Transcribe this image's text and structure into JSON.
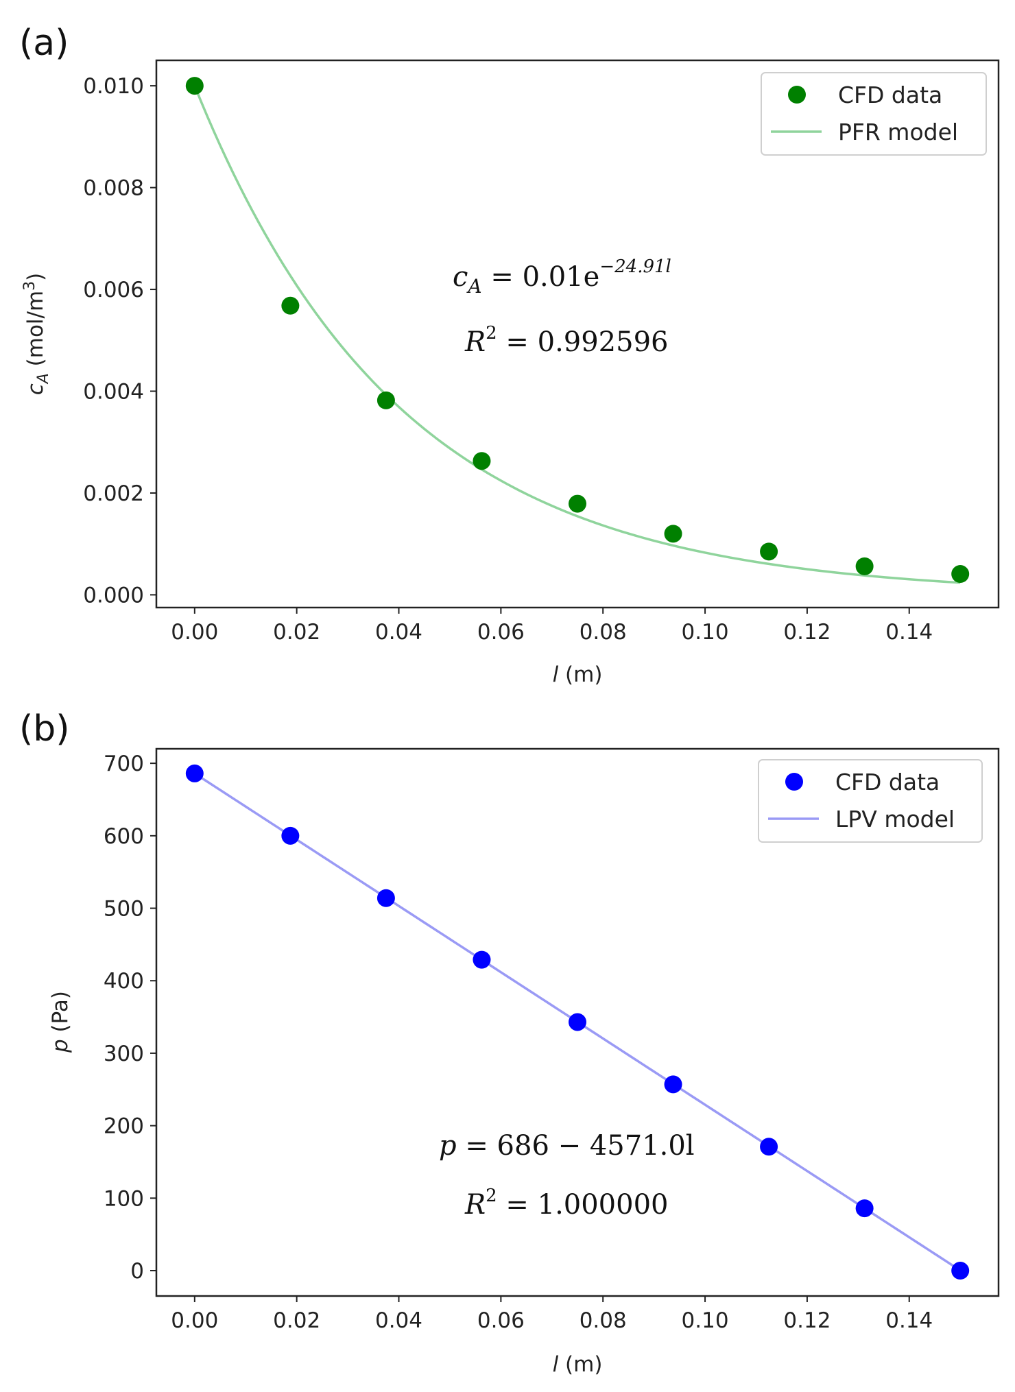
{
  "chart_data": [
    {
      "type": "scatter",
      "panel_label": "(a)",
      "xlabel_var": "l",
      "xlabel_unit": " (m)",
      "ylabel_var": "c",
      "ylabel_sub": "A",
      "ylabel_unit": " (mol/m",
      "ylabel_sup": "3",
      "ylabel_close": ")",
      "xlim": [
        -0.0075,
        0.1575
      ],
      "ylim": [
        -0.00025,
        0.0105
      ],
      "xticks": [
        0.0,
        0.02,
        0.04,
        0.06,
        0.08,
        0.1,
        0.12,
        0.14
      ],
      "xtick_labels": [
        "0.00",
        "0.02",
        "0.04",
        "0.06",
        "0.08",
        "0.10",
        "0.12",
        "0.14"
      ],
      "yticks": [
        0.0,
        0.002,
        0.004,
        0.006,
        0.008,
        0.01
      ],
      "ytick_labels": [
        "0.000",
        "0.002",
        "0.004",
        "0.006",
        "0.008",
        "0.010"
      ],
      "legend_position": "top-right",
      "series": [
        {
          "name": "CFD data",
          "kind": "scatter",
          "color": "#008000",
          "x": [
            0.0,
            0.01875,
            0.0375,
            0.05625,
            0.075,
            0.09375,
            0.1125,
            0.13125,
            0.15
          ],
          "y": [
            0.01,
            0.00568,
            0.00382,
            0.00263,
            0.00179,
            0.0012,
            0.00085,
            0.00056,
            0.00041
          ]
        },
        {
          "name": "PFR model",
          "kind": "line",
          "color": "#8fd49c",
          "model": "exp",
          "a": 0.01,
          "b": -24.91
        }
      ],
      "annotations": [
        {
          "lhs": "c",
          "lhs_sub": "A",
          "rhs": " = 0.01e",
          "sup": "−24.91l"
        },
        {
          "lhs": "R",
          "sup": "2",
          "rhs": " = 0.992596"
        }
      ]
    },
    {
      "type": "scatter",
      "panel_label": "(b)",
      "xlabel_var": "l",
      "xlabel_unit": " (m)",
      "ylabel_var": "p",
      "ylabel_unit": " (Pa)",
      "xlim": [
        -0.0075,
        0.1575
      ],
      "ylim": [
        -35,
        720
      ],
      "xticks": [
        0.0,
        0.02,
        0.04,
        0.06,
        0.08,
        0.1,
        0.12,
        0.14
      ],
      "xtick_labels": [
        "0.00",
        "0.02",
        "0.04",
        "0.06",
        "0.08",
        "0.10",
        "0.12",
        "0.14"
      ],
      "yticks": [
        0,
        100,
        200,
        300,
        400,
        500,
        600,
        700
      ],
      "ytick_labels": [
        "0",
        "100",
        "200",
        "300",
        "400",
        "500",
        "600",
        "700"
      ],
      "legend_position": "top-right",
      "series": [
        {
          "name": "CFD data",
          "kind": "scatter",
          "color": "#0000ff",
          "x": [
            0.0,
            0.01875,
            0.0375,
            0.05625,
            0.075,
            0.09375,
            0.1125,
            0.13125,
            0.15
          ],
          "y": [
            686,
            600,
            514,
            429,
            343,
            257,
            171,
            86,
            0
          ]
        },
        {
          "name": "LPV model",
          "kind": "line",
          "color": "#9a9af5",
          "model": "linear",
          "a": 686,
          "b": -4571.0
        }
      ],
      "annotations": [
        {
          "lhs": "p",
          "rhs": " = 686 − 4571.0l"
        },
        {
          "lhs": "R",
          "sup": "2",
          "rhs": " = 1.000000"
        }
      ]
    }
  ]
}
